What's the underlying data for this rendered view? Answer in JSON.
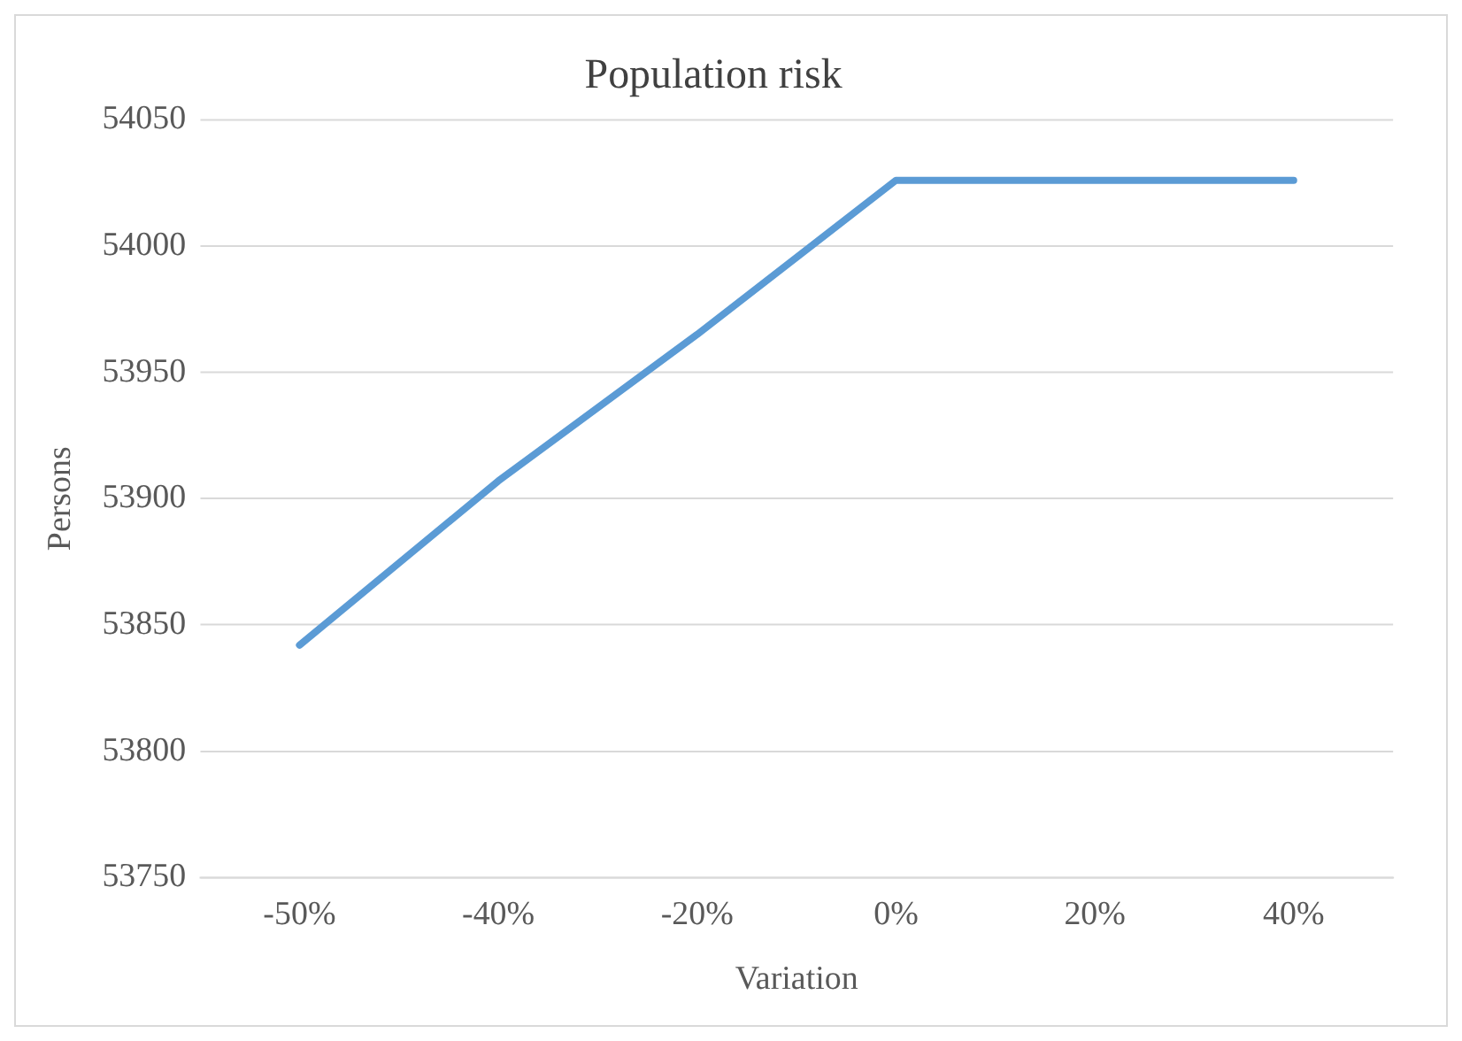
{
  "chart_data": {
    "type": "line",
    "title": "Population risk",
    "xlabel": "Variation",
    "ylabel": "Persons",
    "categories": [
      "-50%",
      "-40%",
      "-20%",
      "0%",
      "20%",
      "40%"
    ],
    "series": [
      {
        "color": "#5b9bd5",
        "values": [
          53842,
          53907,
          53965,
          54026,
          54026,
          54026
        ]
      }
    ],
    "ylim": [
      53750,
      54050
    ],
    "yticks": [
      53750,
      53800,
      53850,
      53900,
      53950,
      54000,
      54050
    ],
    "grid": "y",
    "legend": false,
    "marker": "none",
    "line_style": "solid"
  }
}
